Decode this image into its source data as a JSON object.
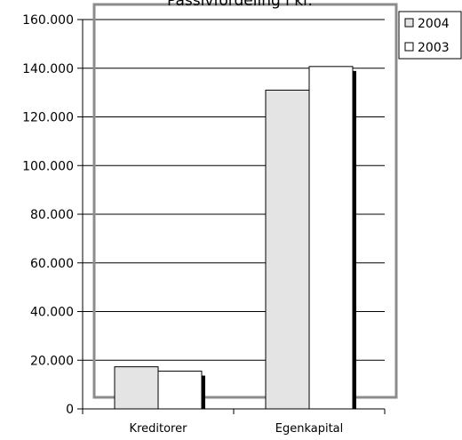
{
  "chart_data": {
    "type": "bar",
    "title": "Passivfordeling i kr.",
    "categories": [
      "Kreditorer",
      "Egenkapital"
    ],
    "series": [
      {
        "name": "2004",
        "values": [
          17300,
          131000
        ],
        "color": "#e4e4e4"
      },
      {
        "name": "2003",
        "values": [
          15500,
          140700
        ],
        "color": "#ffffff"
      }
    ],
    "ylim": [
      0,
      160000
    ],
    "yticks": [
      0,
      20000,
      40000,
      60000,
      80000,
      100000,
      120000,
      140000,
      160000
    ],
    "ytick_labels": [
      "0",
      "20.000",
      "40.000",
      "60.000",
      "80.000",
      "100.000",
      "120.000",
      "140.000",
      "160.000"
    ],
    "grid": true,
    "legend": "top-right"
  }
}
